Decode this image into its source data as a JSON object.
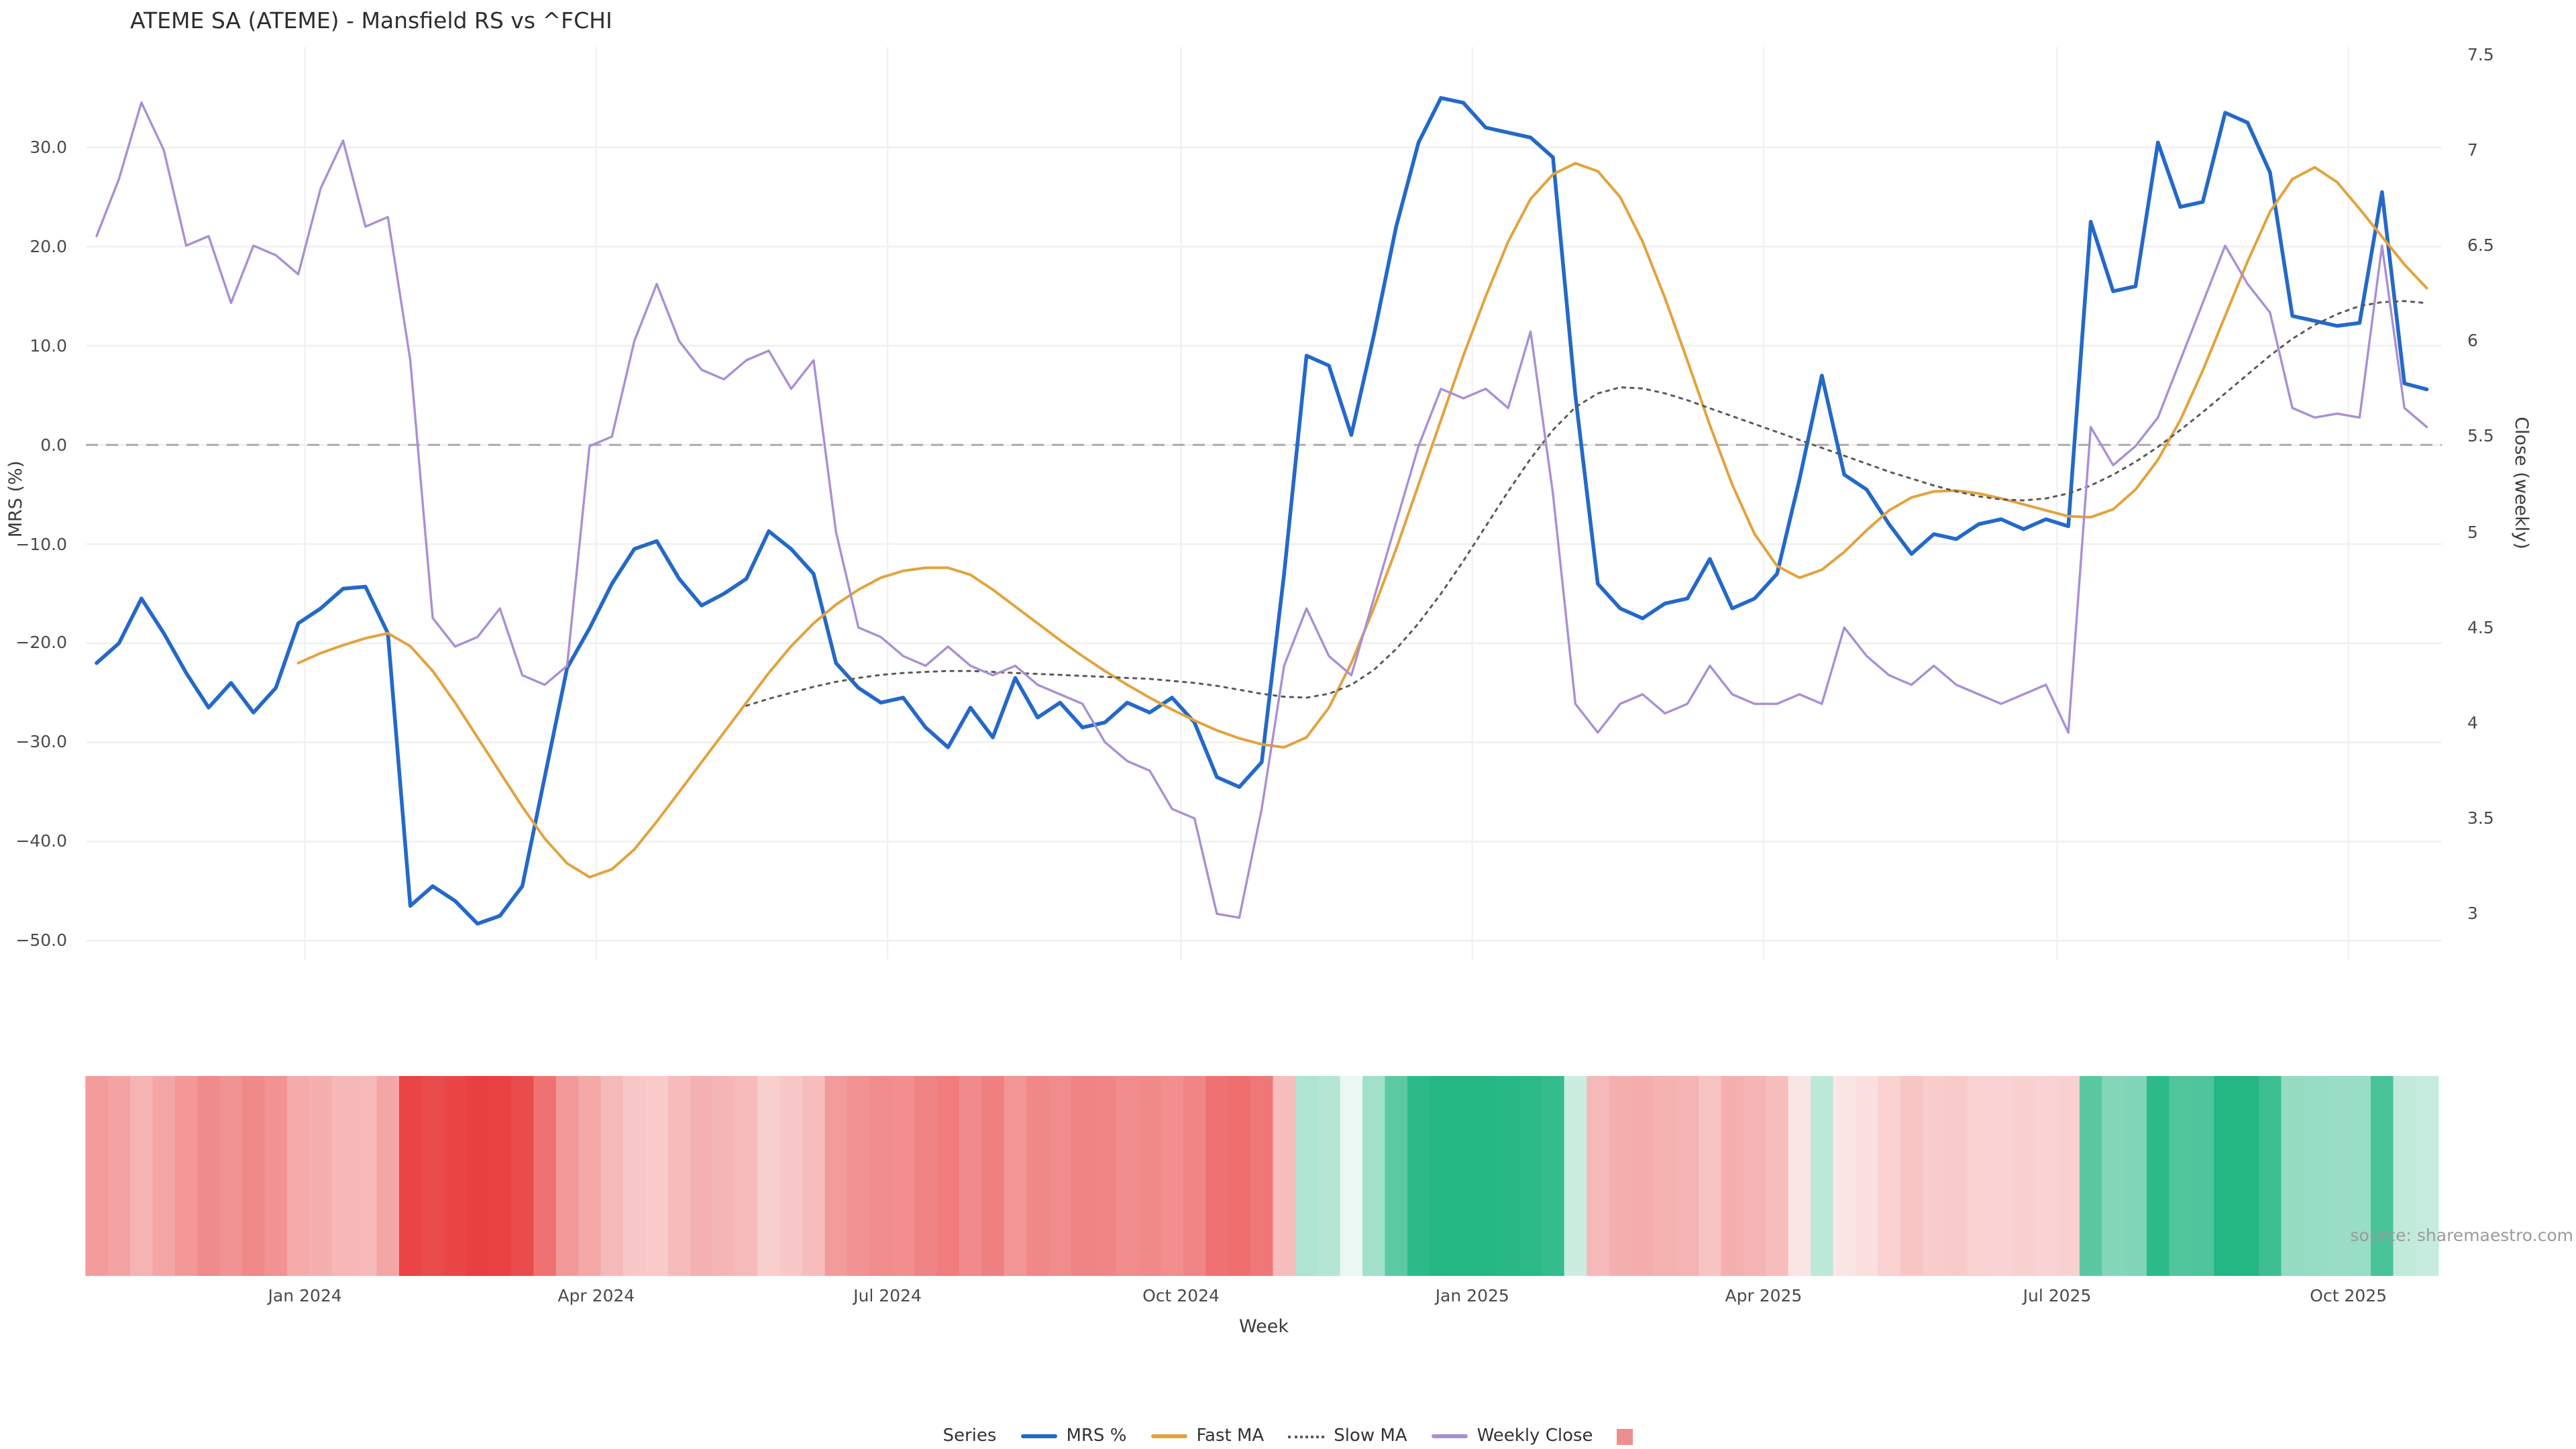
{
  "title": "ATEME SA (ATEME) - Mansfield RS vs ^FCHI",
  "source_note": "source: sharemaestro.com",
  "legend": {
    "label": "Series",
    "items": [
      {
        "label": "MRS %",
        "swatch": "line",
        "color": "#2469c8",
        "name": "mrs"
      },
      {
        "label": "Fast MA",
        "swatch": "line",
        "color": "#e2a33d",
        "name": "fast-ma"
      },
      {
        "label": "Slow MA",
        "swatch": "dotted",
        "color": "#5a5a5a",
        "name": "slow-ma"
      },
      {
        "label": "Weekly Close",
        "swatch": "line",
        "color": "#a98fd4",
        "name": "weekly-close"
      },
      {
        "label": "",
        "swatch": "square",
        "color": "#ee8f8f",
        "name": "heatmap"
      }
    ]
  },
  "chart_data": {
    "type": "line",
    "title": "ATEME SA (ATEME) - Mansfield RS vs ^FCHI",
    "xlabel": "Week",
    "ylabel_left": "MRS (%)",
    "ylabel_right": "Close (weekly)",
    "x_unit": "week",
    "x_start": "Nov 2023",
    "x_end": "Nov 2025",
    "weeks": 105,
    "left_axis_range": [
      -52,
      40
    ],
    "right_axis_range": [
      2.76,
      7.54
    ],
    "zero_line_value": 0,
    "grid": true,
    "x_ticks": [
      {
        "label": "Jan 2024",
        "week": 9.3
      },
      {
        "label": "Apr 2024",
        "week": 22.3
      },
      {
        "label": "Jul 2024",
        "week": 35.3
      },
      {
        "label": "Oct 2024",
        "week": 48.4
      },
      {
        "label": "Jan 2025",
        "week": 61.4
      },
      {
        "label": "Apr 2025",
        "week": 74.4
      },
      {
        "label": "Jul 2025",
        "week": 87.5
      },
      {
        "label": "Oct 2025",
        "week": 100.5
      }
    ],
    "y_left_ticks": [
      {
        "label": "30.0",
        "value": 30
      },
      {
        "label": "20.0",
        "value": 20
      },
      {
        "label": "10.0",
        "value": 10
      },
      {
        "label": "0.0",
        "value": 0
      },
      {
        "label": "−10.0",
        "value": -10
      },
      {
        "label": "−20.0",
        "value": -20
      },
      {
        "label": "−30.0",
        "value": -30
      },
      {
        "label": "−40.0",
        "value": -40
      },
      {
        "label": "−50.0",
        "value": -50
      }
    ],
    "y_right_ticks": [
      {
        "label": "7.5",
        "value": 7.5
      },
      {
        "label": "7",
        "value": 7
      },
      {
        "label": "6.5",
        "value": 6.5
      },
      {
        "label": "6",
        "value": 6
      },
      {
        "label": "5.5",
        "value": 5.5
      },
      {
        "label": "5",
        "value": 5
      },
      {
        "label": "4.5",
        "value": 4.5
      },
      {
        "label": "4",
        "value": 4
      },
      {
        "label": "3.5",
        "value": 3.5
      },
      {
        "label": "3",
        "value": 3
      }
    ],
    "series": [
      {
        "name": "MRS %",
        "axis": "left",
        "color": "#2469c8",
        "style": "solid",
        "start_week": 0,
        "values": [
          -22,
          -20,
          -15.5,
          -19,
          -23,
          -26.5,
          -24,
          -27,
          -24.5,
          -18,
          -16.5,
          -14.5,
          -14.3,
          -19,
          -46.5,
          -44.5,
          -46,
          -48.3,
          -47.5,
          -44.5,
          -33.5,
          -22.5,
          -18.5,
          -14,
          -10.5,
          -9.7,
          -13.5,
          -16.2,
          -15,
          -13.5,
          -8.7,
          -10.5,
          -13,
          -22,
          -24.5,
          -26,
          -25.5,
          -28.5,
          -30.5,
          -26.5,
          -29.5,
          -23.5,
          -27.5,
          -26,
          -28.5,
          -28,
          -26,
          -27,
          -25.5,
          -28,
          -33.5,
          -34.5,
          -32,
          -13,
          9,
          8,
          1,
          11,
          22,
          30.5,
          35,
          34.5,
          32,
          31.5,
          31,
          29,
          5,
          -14,
          -16.5,
          -17.5,
          -16,
          -15.5,
          -11.5,
          -16.5,
          -15.5,
          -13,
          -3.5,
          7,
          -3,
          -4.5,
          -8,
          -11,
          -9,
          -9.5,
          -8,
          -7.5,
          -8.5,
          -7.5,
          -8.2,
          22.5,
          15.5,
          16,
          30.5,
          24,
          24.5,
          33.5,
          32.5,
          27.5,
          13,
          12.5,
          12,
          12.3,
          25.5,
          6.2,
          5.6
        ]
      },
      {
        "name": "Fast MA",
        "axis": "left",
        "color": "#e2a33d",
        "style": "solid",
        "start_week": 9,
        "values": [
          -22,
          -21,
          -20.2,
          -19.5,
          -19,
          -20.3,
          -22.8,
          -26,
          -29.5,
          -33,
          -36.5,
          -39.7,
          -42.2,
          -43.6,
          -42.8,
          -40.8,
          -38,
          -35,
          -32,
          -29,
          -26,
          -23,
          -20.3,
          -18,
          -16.1,
          -14.6,
          -13.4,
          -12.7,
          -12.4,
          -12.4,
          -13.1,
          -14.6,
          -16.3,
          -18,
          -19.7,
          -21.3,
          -22.8,
          -24.2,
          -25.5,
          -26.7,
          -27.8,
          -28.8,
          -29.6,
          -30.2,
          -30.5,
          -29.5,
          -26.5,
          -22,
          -16.5,
          -10.5,
          -4,
          2.5,
          9,
          15,
          20.5,
          24.8,
          27.3,
          28.4,
          27.6,
          25,
          20.5,
          14.8,
          8.5,
          2,
          -4,
          -9,
          -12.2,
          -13.4,
          -12.6,
          -10.8,
          -8.6,
          -6.6,
          -5.3,
          -4.7,
          -4.6,
          -4.9,
          -5.4,
          -6,
          -6.6,
          -7.2,
          -7.3,
          -6.5,
          -4.5,
          -1.5,
          2.5,
          7.5,
          13,
          18.5,
          23.5,
          26.8,
          28,
          26.5,
          23.8,
          21,
          18.2,
          15.8
        ]
      },
      {
        "name": "Slow MA",
        "axis": "left",
        "color": "#5a5a5a",
        "style": "dotted",
        "start_week": 29,
        "values": [
          -26.3,
          -25.6,
          -25,
          -24.4,
          -23.9,
          -23.5,
          -23.2,
          -23,
          -22.9,
          -22.8,
          -22.8,
          -22.9,
          -23,
          -23.1,
          -23.2,
          -23.3,
          -23.4,
          -23.5,
          -23.6,
          -23.8,
          -24,
          -24.3,
          -24.7,
          -25.1,
          -25.4,
          -25.5,
          -25.1,
          -24.2,
          -22.7,
          -20.6,
          -18,
          -15,
          -11.7,
          -8.2,
          -4.7,
          -1.4,
          1.5,
          3.8,
          5.2,
          5.8,
          5.7,
          5.2,
          4.5,
          3.7,
          2.9,
          2.1,
          1.3,
          0.5,
          -0.3,
          -1.1,
          -1.9,
          -2.7,
          -3.4,
          -4.1,
          -4.7,
          -5.2,
          -5.5,
          -5.6,
          -5.4,
          -4.9,
          -4.1,
          -3,
          -1.7,
          -0.2,
          1.5,
          3.3,
          5.2,
          7.1,
          9,
          10.7,
          12.1,
          13.2,
          14,
          14.4,
          14.5,
          14.3
        ]
      },
      {
        "name": "Weekly Close",
        "axis": "right",
        "color": "#a98fd4",
        "style": "solid",
        "start_week": 0,
        "values": [
          6.55,
          6.85,
          7.25,
          7.0,
          6.5,
          6.55,
          6.2,
          6.5,
          6.45,
          6.35,
          6.8,
          7.05,
          6.6,
          6.65,
          5.9,
          4.55,
          4.4,
          4.45,
          4.6,
          4.25,
          4.2,
          4.3,
          5.45,
          5.5,
          6.0,
          6.3,
          6.0,
          5.85,
          5.8,
          5.9,
          5.95,
          5.75,
          5.9,
          5.0,
          4.5,
          4.45,
          4.35,
          4.3,
          4.4,
          4.3,
          4.25,
          4.3,
          4.2,
          4.15,
          4.1,
          3.9,
          3.8,
          3.75,
          3.55,
          3.5,
          3.0,
          2.98,
          3.55,
          4.3,
          4.6,
          4.35,
          4.25,
          4.65,
          5.05,
          5.45,
          5.75,
          5.7,
          5.75,
          5.65,
          6.05,
          5.2,
          4.1,
          3.95,
          4.1,
          4.15,
          4.05,
          4.1,
          4.3,
          4.15,
          4.1,
          4.1,
          4.15,
          4.1,
          4.5,
          4.35,
          4.25,
          4.2,
          4.3,
          4.2,
          4.15,
          4.1,
          4.15,
          4.2,
          3.95,
          5.55,
          5.35,
          5.45,
          5.6,
          5.9,
          6.2,
          6.5,
          6.3,
          6.15,
          5.65,
          5.6,
          5.62,
          5.6,
          6.5,
          5.65,
          5.55
        ]
      }
    ],
    "heatmap_strip": {
      "description": "weekly heat strip below chart, color derived from MRS % (red = negative, green = positive)",
      "derived_from": "MRS %",
      "negative_color": "#e93f3f",
      "positive_color": "#24b784"
    }
  }
}
